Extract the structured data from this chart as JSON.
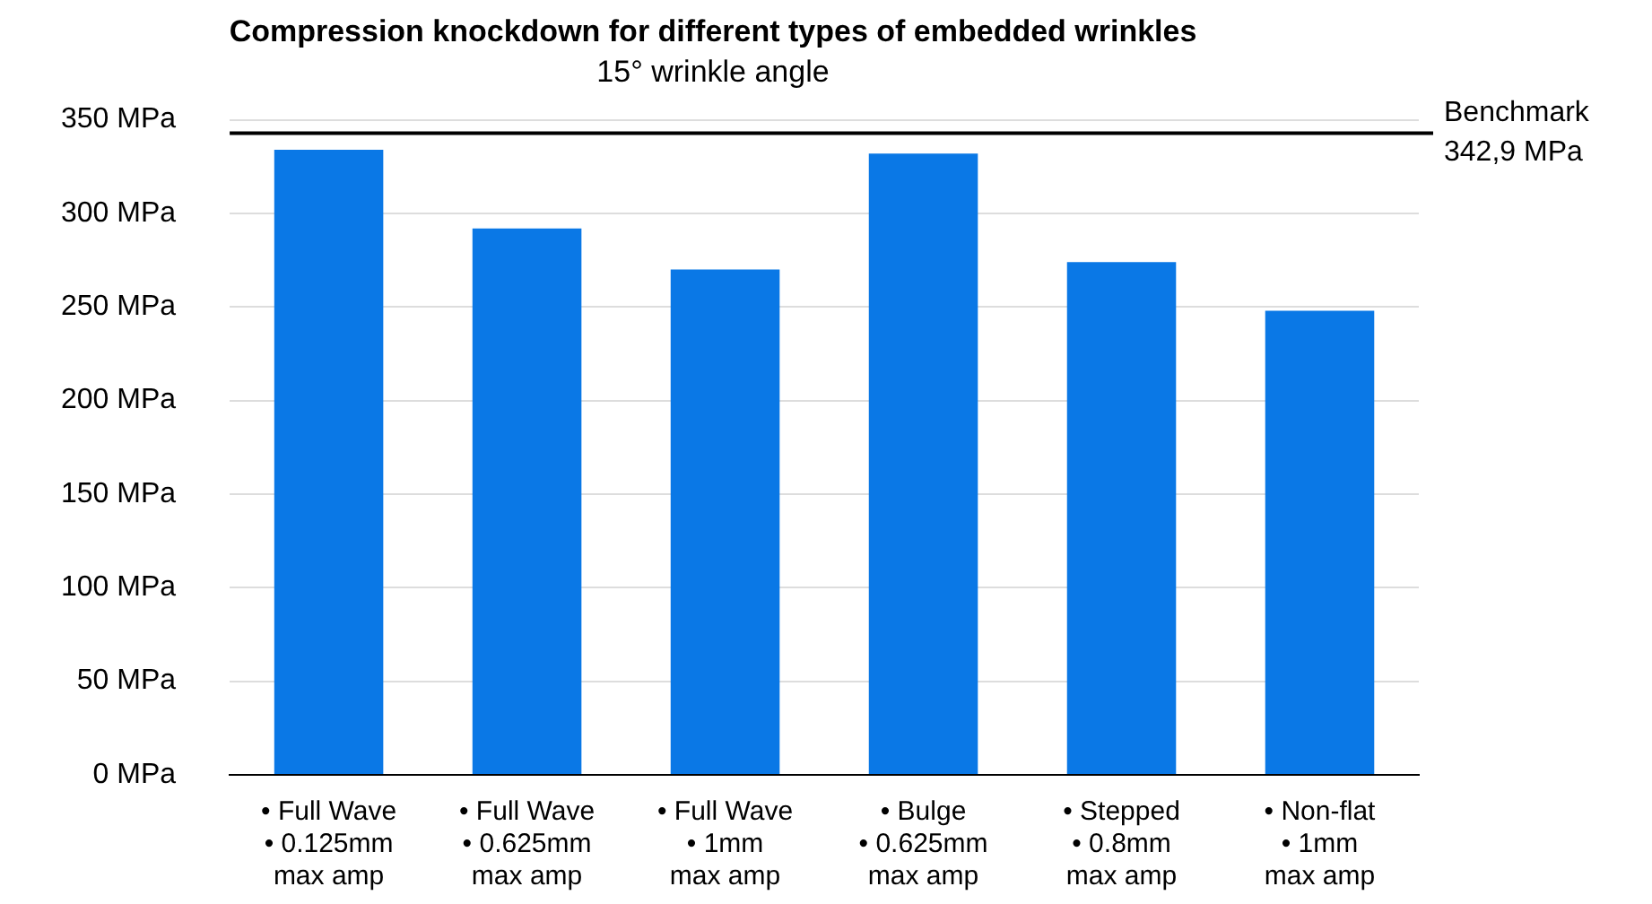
{
  "chart_data": {
    "type": "bar",
    "title": "Compression knockdown for different types of embedded wrinkles",
    "subtitle": "15° wrinkle angle",
    "categories": [
      "• Full Wave\n• 0.125mm\nmax amp",
      "• Full Wave\n• 0.625mm\nmax amp",
      "• Full Wave\n• 1mm\nmax amp",
      "• Bulge\n• 0.625mm\nmax amp",
      "• Stepped\n• 0.8mm\nmax amp",
      "• Non-flat\n• 1mm\nmax amp"
    ],
    "values": [
      334,
      292,
      270,
      332,
      274,
      248
    ],
    "color": "#0a78e6",
    "ylim": [
      0,
      350
    ],
    "yticks": [
      {
        "value": 0,
        "label": "0 MPa"
      },
      {
        "value": 50,
        "label": "50 MPa"
      },
      {
        "value": 100,
        "label": "100 MPa"
      },
      {
        "value": 150,
        "label": "150 MPa"
      },
      {
        "value": 200,
        "label": "200 MPa"
      },
      {
        "value": 250,
        "label": "250 MPa"
      },
      {
        "value": 300,
        "label": "300 MPa"
      },
      {
        "value": 350,
        "label": "350 MPa"
      }
    ],
    "ref_lines": [
      {
        "axis": "y",
        "value": 342.9,
        "label": "Benchmark\n342,9 MPa",
        "color": "#000000"
      }
    ],
    "grid": "y",
    "legend": false
  }
}
